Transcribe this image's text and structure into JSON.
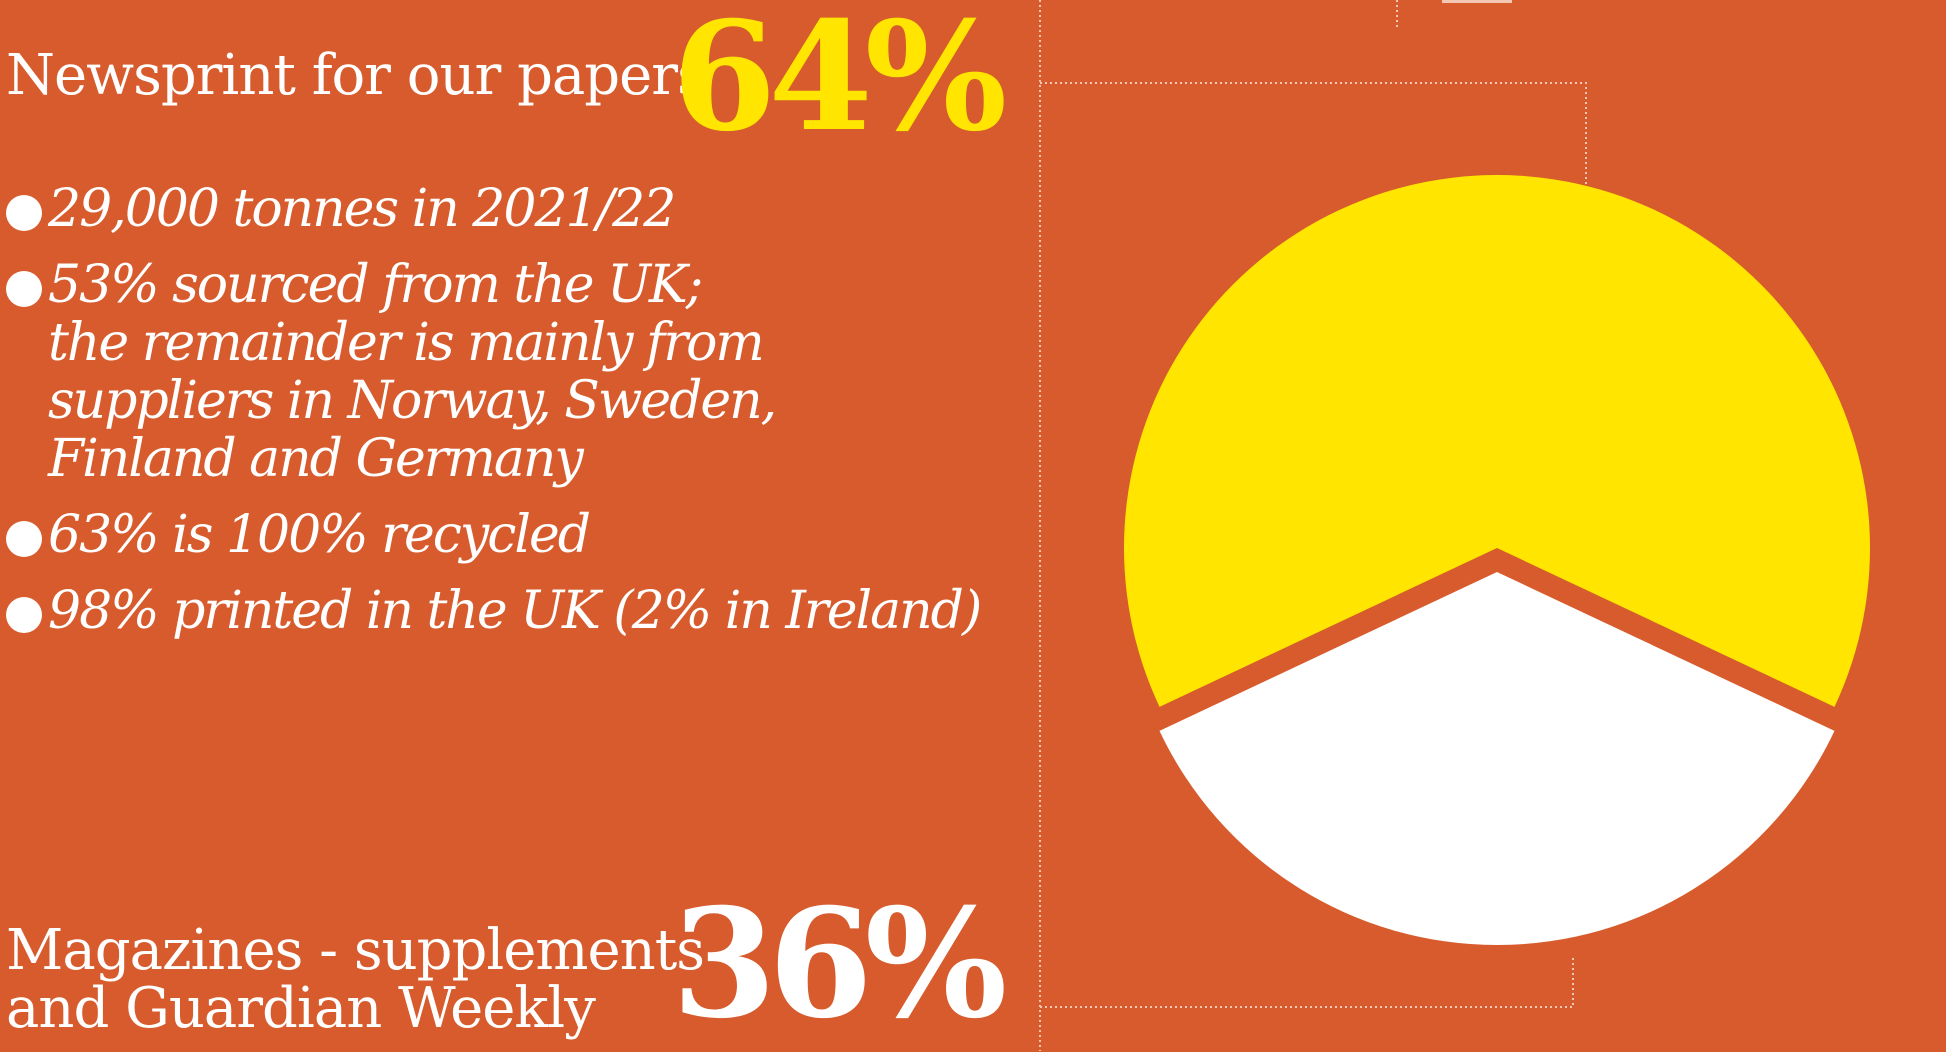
{
  "colors": {
    "background": "#D75B2C",
    "accent_yellow": "#FFE500",
    "white": "#FFFFFF"
  },
  "newsprint": {
    "label": "Newsprint for our papers",
    "percent_label": "64%",
    "bullets": [
      {
        "lines": [
          "29,000 tonnes in 2021/22"
        ]
      },
      {
        "lines": [
          "53% sourced from the UK;",
          "the remainder is mainly from",
          "suppliers in Norway, Sweden,",
          "Finland and Germany"
        ]
      },
      {
        "lines": [
          "63% is 100% recycled"
        ]
      },
      {
        "lines": [
          "98% printed in the UK (2% in Ireland)"
        ]
      }
    ]
  },
  "magazines": {
    "label_lines": [
      "Magazines - supplements",
      "and Guardian Weekly"
    ],
    "percent_label": "36%"
  },
  "chart_data": {
    "type": "pie",
    "title": "",
    "slices": [
      {
        "label": "Newsprint for our papers",
        "value": 64,
        "color": "#FFE500"
      },
      {
        "label": "Magazines - supplements and Guardian Weekly",
        "value": 36,
        "color": "#FFFFFF"
      }
    ]
  }
}
